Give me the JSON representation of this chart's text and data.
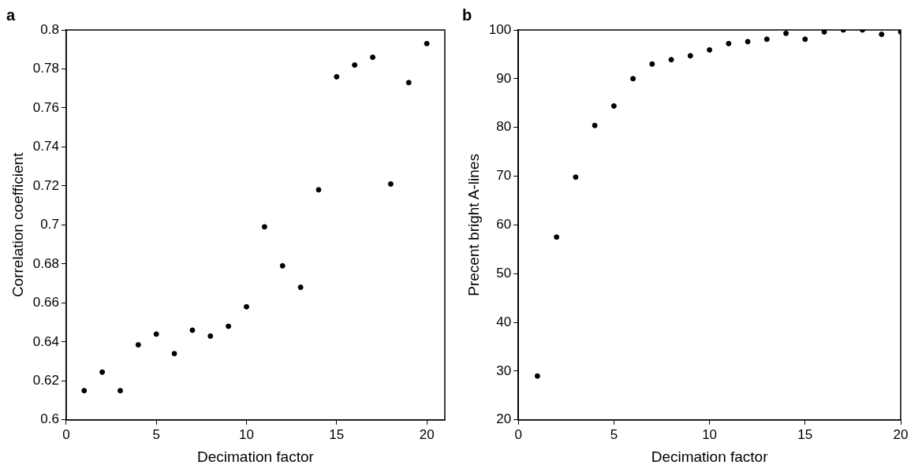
{
  "chart_data": [
    {
      "type": "scatter",
      "title": "a",
      "xlabel": "Decimation factor",
      "ylabel": "Correlation coefficient",
      "marker": "circle",
      "grid": false,
      "xlim": [
        0,
        21
      ],
      "xticks": [
        0,
        5,
        10,
        15,
        20
      ],
      "ylim": [
        0.6,
        0.8
      ],
      "yticks": [
        0.6,
        0.62,
        0.64,
        0.66,
        0.68,
        0.7,
        0.72,
        0.74,
        0.76,
        0.78,
        0.8
      ],
      "x": [
        1,
        2,
        3,
        4,
        5,
        6,
        7,
        8,
        9,
        10,
        11,
        12,
        13,
        14,
        15,
        16,
        17,
        18,
        19,
        20
      ],
      "series": [
        {
          "color": "#000000",
          "values": [
            0.615,
            0.6245,
            0.615,
            0.6385,
            0.644,
            0.634,
            0.646,
            0.643,
            0.648,
            0.658,
            0.699,
            0.679,
            0.668,
            0.718,
            0.776,
            0.782,
            0.786,
            0.721,
            0.773,
            0.793
          ]
        }
      ]
    },
    {
      "type": "scatter",
      "title": "b",
      "xlabel": "Decimation factor",
      "ylabel": "Precent bright A-lines",
      "marker": "circle",
      "grid": false,
      "xlim": [
        0,
        20
      ],
      "xticks": [
        0,
        5,
        10,
        15,
        20
      ],
      "ylim": [
        20,
        100
      ],
      "yticks": [
        20,
        30,
        40,
        50,
        60,
        70,
        80,
        90,
        100
      ],
      "x": [
        1,
        2,
        3,
        4,
        5,
        6,
        7,
        8,
        9,
        10,
        11,
        12,
        13,
        14,
        15,
        16,
        17,
        18,
        19,
        20
      ],
      "series": [
        {
          "color": "#000000",
          "values": [
            29,
            57.5,
            69.8,
            80.4,
            84.4,
            90,
            93,
            93.9,
            94.7,
            95.9,
            97.2,
            97.6,
            98.1,
            99.3,
            98.1,
            99.6,
            100,
            100,
            99.1,
            99.6
          ]
        }
      ]
    }
  ]
}
